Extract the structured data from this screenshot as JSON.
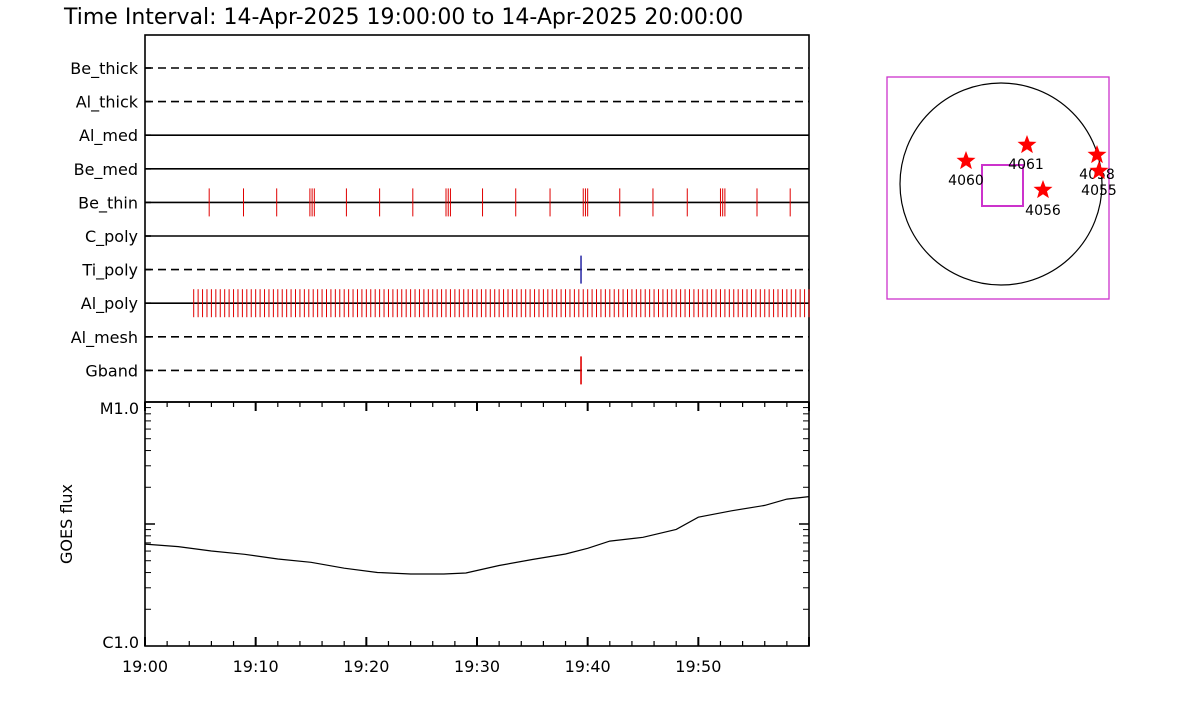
{
  "header": {
    "title": "Time Interval: 14-Apr-2025 19:00:00 to 14-Apr-2025 20:00:00"
  },
  "colors": {
    "axis": "#000000",
    "red_tick": "#e00000",
    "blue_tick": "#3333aa",
    "star": "#ff0000",
    "box": "#cc33cc"
  },
  "chart_data": [
    {
      "type": "timeline",
      "x_range_minutes": [
        0,
        60
      ],
      "rows": [
        {
          "label": "Be_thick",
          "style": "dashed",
          "events": []
        },
        {
          "label": "Al_thick",
          "style": "dashed",
          "events": []
        },
        {
          "label": "Al_med",
          "style": "solid",
          "events": []
        },
        {
          "label": "Be_med",
          "style": "solid",
          "events": []
        },
        {
          "label": "Be_thin",
          "style": "solid",
          "color": "red",
          "height": "short",
          "events": [
            5.8,
            8.9,
            11.9,
            14.9,
            15.1,
            15.3,
            18.2,
            21.2,
            24.2,
            27.2,
            27.4,
            27.6,
            30.5,
            33.5,
            36.6,
            39.6,
            39.8,
            40.0,
            42.9,
            45.9,
            49.0,
            52.0,
            52.2,
            52.4,
            55.3,
            58.3
          ]
        },
        {
          "label": "C_poly",
          "style": "solid",
          "events": []
        },
        {
          "label": "Ti_poly",
          "style": "dashed",
          "color": "blue",
          "height": "tall",
          "events": [
            39.4
          ]
        },
        {
          "label": "Al_poly",
          "style": "solid",
          "color": "red",
          "height": "short",
          "events_range": [
            4.4,
            60.0,
            0.4
          ]
        },
        {
          "label": "Al_mesh",
          "style": "dashed",
          "events": []
        },
        {
          "label": "Gband",
          "style": "dashed",
          "color": "red",
          "height": "tall",
          "events": [
            39.4
          ]
        }
      ]
    },
    {
      "type": "line",
      "ylabel": "GOES flux",
      "y_scale": "log",
      "ylim_labels": [
        "C1.0",
        "M1.0"
      ],
      "x_tick_labels": [
        "19:00",
        "19:10",
        "19:20",
        "19:30",
        "19:40",
        "19:50"
      ],
      "series": [
        {
          "x": [
            0,
            3,
            6,
            9,
            12,
            15,
            18,
            21,
            24,
            27,
            29,
            32,
            35,
            38,
            40,
            42,
            45,
            48,
            50,
            53,
            56,
            58,
            60
          ],
          "y": [
            0.4175,
            0.4072,
            0.3893,
            0.3757,
            0.3567,
            0.3431,
            0.3188,
            0.3013,
            0.2951,
            0.2951,
            0.299,
            0.3298,
            0.3544,
            0.3772,
            0.4005,
            0.4299,
            0.4456,
            0.4779,
            0.5277,
            0.5539,
            0.5763,
            0.6021,
            0.6121
          ]
        }
      ]
    },
    {
      "type": "scatter",
      "description_type": "solar-disk",
      "points": [
        {
          "label": "4060"
        },
        {
          "label": "4061"
        },
        {
          "label": "4056"
        },
        {
          "label": "4058"
        },
        {
          "label": "4055"
        }
      ]
    }
  ]
}
